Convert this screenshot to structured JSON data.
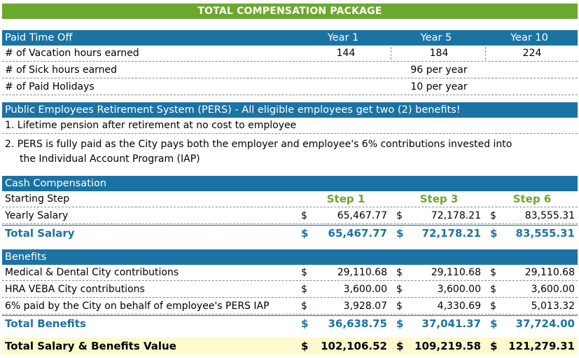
{
  "title": "TOTAL COMPENSATION PACKAGE",
  "pto": {
    "header": "Paid Time Off",
    "col1": "Year 1",
    "col2": "Year 5",
    "col3": "Year 10",
    "vacation_label": "# of Vacation hours earned",
    "vacation": [
      "144",
      "184",
      "224"
    ],
    "sick_label": "# of Sick hours earned",
    "sick": "96 per year",
    "holidays_label": "# of Paid Holidays",
    "holidays": "10 per year"
  },
  "pers": {
    "header": "Public Employees Retirement System (PERS) - All eligible employees get two (2) benefits!",
    "item1": "1. Lifetime pension after retirement at no cost to employee",
    "item2_line1": "2.  PERS is fully paid as the City pays both the employer and employee's 6% contributions invested into",
    "item2_line2": "the Individual Account Program (IAP)"
  },
  "cash": {
    "header": "Cash Compensation",
    "starting_step_label": "Starting Step",
    "steps": [
      "Step 1",
      "Step 3",
      "Step 6"
    ],
    "yearly_label": "Yearly Salary",
    "yearly": [
      "65,467.77",
      "72,178.21",
      "83,555.31"
    ],
    "total_label": "Total Salary",
    "total": [
      "65,467.77",
      "72,178.21",
      "83,555.31"
    ]
  },
  "benefits": {
    "header": "Benefits",
    "rows": [
      {
        "label": "Medical & Dental City contributions",
        "values": [
          "29,110.68",
          "29,110.68",
          "29,110.68"
        ]
      },
      {
        "label": "HRA VEBA City contributions",
        "values": [
          "3,600.00",
          "3,600.00",
          "3,600.00"
        ]
      },
      {
        "label": "6% paid by the City on behalf of employee's PERS IAP",
        "values": [
          "3,928.07",
          "4,330.69",
          "5,013.32"
        ]
      }
    ],
    "total_label": "Total Benefits",
    "total": [
      "36,638.75",
      "37,041.37",
      "37,724.00"
    ]
  },
  "grand": {
    "label": "Total Salary & Benefits Value",
    "values": [
      "102,106.52",
      "109,219.58",
      "121,279.31"
    ]
  },
  "currency": "$",
  "colors": {
    "green": "#6aa82e",
    "blue": "#1b73a4",
    "highlight": "#fffacd"
  }
}
